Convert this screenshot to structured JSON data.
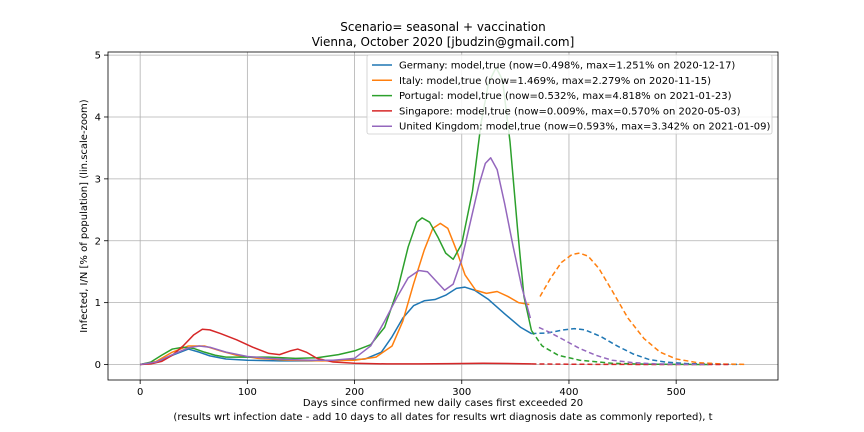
{
  "chart_data": {
    "type": "line",
    "title": "Scenario= seasonal + vaccination",
    "subtitle": "Vienna, October 2020 [jbudzin@gmail.com]",
    "xlabel": "Days since confirmed new daily cases first exceeded 20",
    "xlabel2": "(results wrt infection date - add 10 days to all dates for results wrt diagnosis date as commonly reported), t",
    "ylabel": "Infected, I/N [% of population] (lin.scale-zoom)",
    "xlim": [
      -30,
      595
    ],
    "ylim": [
      -0.25,
      5.05
    ],
    "xticks": [
      0,
      100,
      200,
      300,
      400,
      500
    ],
    "yticks": [
      0,
      1,
      2,
      3,
      4,
      5
    ],
    "grid": true,
    "legend_position": "top-right",
    "model_end": 365,
    "series": [
      {
        "name": "Germany: model,true (now=0.498%, max=1.251% on 2020-12-17)",
        "color": "#1f77b4",
        "points": [
          [
            0,
            0
          ],
          [
            15,
            0.04
          ],
          [
            30,
            0.15
          ],
          [
            45,
            0.25
          ],
          [
            55,
            0.2
          ],
          [
            65,
            0.14
          ],
          [
            80,
            0.09
          ],
          [
            100,
            0.07
          ],
          [
            130,
            0.06
          ],
          [
            160,
            0.06
          ],
          [
            190,
            0.07
          ],
          [
            210,
            0.09
          ],
          [
            225,
            0.2
          ],
          [
            235,
            0.45
          ],
          [
            245,
            0.75
          ],
          [
            255,
            0.95
          ],
          [
            265,
            1.03
          ],
          [
            275,
            1.05
          ],
          [
            285,
            1.12
          ],
          [
            295,
            1.23
          ],
          [
            303,
            1.25
          ],
          [
            312,
            1.2
          ],
          [
            325,
            1.05
          ],
          [
            340,
            0.82
          ],
          [
            355,
            0.6
          ],
          [
            365,
            0.5
          ],
          [
            380,
            0.51
          ],
          [
            395,
            0.56
          ],
          [
            405,
            0.58
          ],
          [
            415,
            0.56
          ],
          [
            430,
            0.45
          ],
          [
            445,
            0.3
          ],
          [
            460,
            0.17
          ],
          [
            475,
            0.08
          ],
          [
            490,
            0.04
          ],
          [
            510,
            0.015
          ],
          [
            540,
            0.005
          ],
          [
            560,
            0.002
          ]
        ]
      },
      {
        "name": "Italy: model,true (now=1.469%, max=2.279% on 2020-11-15)",
        "color": "#ff7f0e",
        "points": [
          [
            0,
            0
          ],
          [
            15,
            0.05
          ],
          [
            30,
            0.2
          ],
          [
            45,
            0.3
          ],
          [
            60,
            0.3
          ],
          [
            75,
            0.22
          ],
          [
            90,
            0.15
          ],
          [
            110,
            0.1
          ],
          [
            140,
            0.07
          ],
          [
            170,
            0.06
          ],
          [
            200,
            0.07
          ],
          [
            220,
            0.12
          ],
          [
            235,
            0.3
          ],
          [
            245,
            0.7
          ],
          [
            255,
            1.3
          ],
          [
            265,
            1.85
          ],
          [
            273,
            2.2
          ],
          [
            280,
            2.28
          ],
          [
            287,
            2.2
          ],
          [
            295,
            1.85
          ],
          [
            303,
            1.45
          ],
          [
            313,
            1.2
          ],
          [
            323,
            1.15
          ],
          [
            333,
            1.18
          ],
          [
            343,
            1.1
          ],
          [
            353,
            1.0
          ],
          [
            363,
            0.97
          ],
          [
            373,
            1.1
          ],
          [
            383,
            1.4
          ],
          [
            393,
            1.65
          ],
          [
            403,
            1.78
          ],
          [
            410,
            1.8
          ],
          [
            418,
            1.75
          ],
          [
            428,
            1.55
          ],
          [
            440,
            1.2
          ],
          [
            455,
            0.75
          ],
          [
            470,
            0.42
          ],
          [
            485,
            0.2
          ],
          [
            500,
            0.09
          ],
          [
            520,
            0.03
          ],
          [
            545,
            0.008
          ],
          [
            565,
            0.003
          ]
        ]
      },
      {
        "name": "Portugal: model,true (now=0.532%, max=4.818% on 2021-01-23)",
        "color": "#2ca02c",
        "points": [
          [
            0,
            0
          ],
          [
            10,
            0.04
          ],
          [
            20,
            0.15
          ],
          [
            30,
            0.25
          ],
          [
            40,
            0.28
          ],
          [
            50,
            0.26
          ],
          [
            60,
            0.2
          ],
          [
            70,
            0.15
          ],
          [
            80,
            0.12
          ],
          [
            100,
            0.12
          ],
          [
            120,
            0.12
          ],
          [
            145,
            0.1
          ],
          [
            165,
            0.11
          ],
          [
            185,
            0.16
          ],
          [
            200,
            0.22
          ],
          [
            215,
            0.32
          ],
          [
            228,
            0.6
          ],
          [
            240,
            1.2
          ],
          [
            250,
            1.9
          ],
          [
            258,
            2.3
          ],
          [
            263,
            2.37
          ],
          [
            270,
            2.3
          ],
          [
            278,
            2.05
          ],
          [
            285,
            1.8
          ],
          [
            292,
            1.7
          ],
          [
            300,
            1.95
          ],
          [
            310,
            2.8
          ],
          [
            318,
            3.9
          ],
          [
            325,
            4.55
          ],
          [
            332,
            4.8
          ],
          [
            338,
            4.6
          ],
          [
            345,
            3.6
          ],
          [
            352,
            2.2
          ],
          [
            358,
            1.1
          ],
          [
            365,
            0.55
          ],
          [
            375,
            0.3
          ],
          [
            390,
            0.15
          ],
          [
            410,
            0.07
          ],
          [
            440,
            0.02
          ],
          [
            470,
            0.006
          ],
          [
            500,
            0.002
          ],
          [
            530,
            0.001
          ]
        ]
      },
      {
        "name": "Singapore: model,true (now=0.009%, max=0.570% on 2020-05-03)",
        "color": "#d62728",
        "points": [
          [
            0,
            0
          ],
          [
            10,
            0.01
          ],
          [
            20,
            0.05
          ],
          [
            30,
            0.15
          ],
          [
            40,
            0.3
          ],
          [
            50,
            0.48
          ],
          [
            58,
            0.57
          ],
          [
            65,
            0.56
          ],
          [
            75,
            0.5
          ],
          [
            90,
            0.4
          ],
          [
            105,
            0.28
          ],
          [
            120,
            0.18
          ],
          [
            130,
            0.16
          ],
          [
            140,
            0.22
          ],
          [
            147,
            0.25
          ],
          [
            155,
            0.2
          ],
          [
            165,
            0.1
          ],
          [
            180,
            0.04
          ],
          [
            200,
            0.02
          ],
          [
            230,
            0.01
          ],
          [
            260,
            0.01
          ],
          [
            290,
            0.015
          ],
          [
            320,
            0.02
          ],
          [
            350,
            0.015
          ],
          [
            365,
            0.01
          ],
          [
            400,
            0.005
          ],
          [
            440,
            0.002
          ],
          [
            480,
            0.001
          ],
          [
            520,
            0.0005
          ],
          [
            550,
            0.0002
          ]
        ]
      },
      {
        "name": "United Kingdom: model,true (now=0.593%, max=3.342% on 2021-01-09)",
        "color": "#9467bd",
        "points": [
          [
            0,
            0
          ],
          [
            15,
            0.04
          ],
          [
            30,
            0.16
          ],
          [
            45,
            0.27
          ],
          [
            55,
            0.3
          ],
          [
            65,
            0.28
          ],
          [
            80,
            0.2
          ],
          [
            100,
            0.13
          ],
          [
            120,
            0.1
          ],
          [
            140,
            0.08
          ],
          [
            160,
            0.07
          ],
          [
            180,
            0.07
          ],
          [
            200,
            0.1
          ],
          [
            215,
            0.3
          ],
          [
            228,
            0.7
          ],
          [
            240,
            1.1
          ],
          [
            250,
            1.4
          ],
          [
            260,
            1.52
          ],
          [
            268,
            1.5
          ],
          [
            276,
            1.35
          ],
          [
            284,
            1.2
          ],
          [
            292,
            1.3
          ],
          [
            300,
            1.7
          ],
          [
            308,
            2.3
          ],
          [
            316,
            2.9
          ],
          [
            322,
            3.25
          ],
          [
            327,
            3.34
          ],
          [
            333,
            3.15
          ],
          [
            340,
            2.6
          ],
          [
            348,
            1.9
          ],
          [
            356,
            1.25
          ],
          [
            364,
            0.75
          ],
          [
            372,
            0.6
          ],
          [
            382,
            0.52
          ],
          [
            395,
            0.4
          ],
          [
            410,
            0.26
          ],
          [
            425,
            0.15
          ],
          [
            440,
            0.07
          ],
          [
            460,
            0.03
          ],
          [
            480,
            0.012
          ],
          [
            505,
            0.004
          ],
          [
            530,
            0.001
          ]
        ]
      }
    ]
  }
}
